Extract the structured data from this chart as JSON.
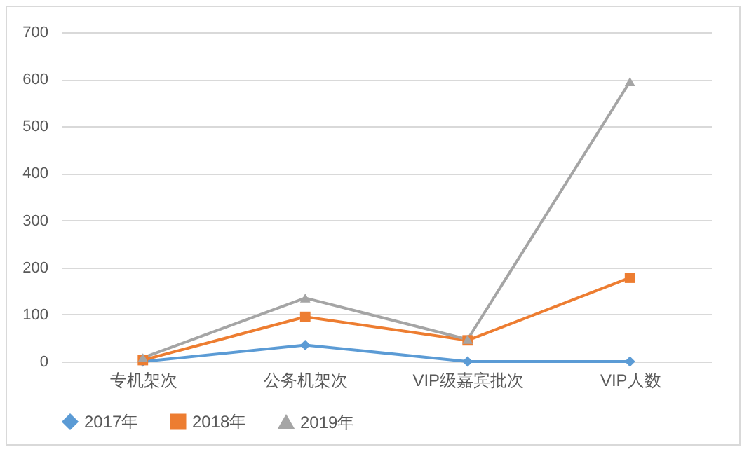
{
  "chart_data": {
    "type": "line",
    "categories": [
      "专机架次",
      "公务机架次",
      "VIP级嘉宾批次",
      "VIP人数"
    ],
    "series": [
      {
        "name": "2017年",
        "color": "#5b9bd5",
        "marker": "diamond",
        "values": [
          0,
          35,
          0,
          0
        ]
      },
      {
        "name": "2018年",
        "color": "#ed7d31",
        "marker": "square",
        "values": [
          3,
          95,
          45,
          178
        ]
      },
      {
        "name": "2019年",
        "color": "#a5a5a5",
        "marker": "triangle",
        "values": [
          8,
          135,
          47,
          595
        ]
      }
    ],
    "ylim": [
      0,
      700
    ],
    "yticks": [
      0,
      100,
      200,
      300,
      400,
      500,
      600,
      700
    ],
    "grid": "y",
    "legend": "bottom"
  }
}
